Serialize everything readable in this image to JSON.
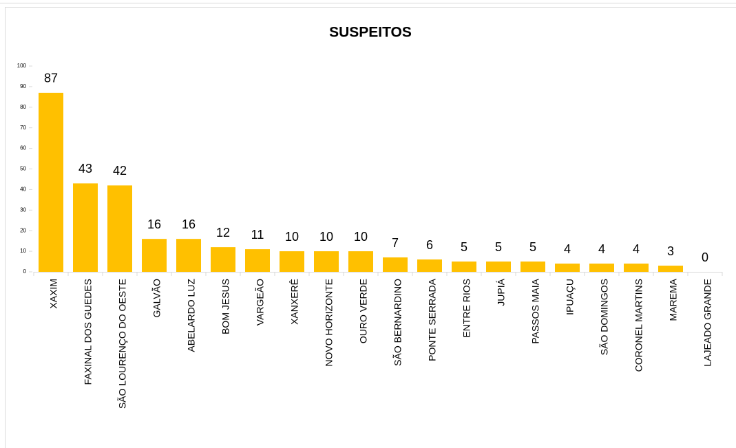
{
  "chart_data": {
    "type": "bar",
    "title": "SUSPEITOS",
    "categories": [
      "XAXIM",
      "FAXINAL DOS GUEDES",
      "SÃO LOURENÇO DO OESTE",
      "GALVÃO",
      "ABELARDO LUZ",
      "BOM JESUS",
      "VARGEÃO",
      "XANXERÊ",
      "NOVO HORIZONTE",
      "OURO VERDE",
      "SÃO BERNARDINO",
      "PONTE SERRADA",
      "ENTRE RIOS",
      "JUPIÁ",
      "PASSOS MAIA",
      "IPUAÇU",
      "SÃO DOMINGOS",
      "CORONEL MARTINS",
      "MAREMA",
      "LAJEADO GRANDE"
    ],
    "values": [
      87,
      43,
      42,
      16,
      16,
      12,
      11,
      10,
      10,
      10,
      7,
      6,
      5,
      5,
      5,
      4,
      4,
      4,
      3,
      0
    ],
    "color": "#ffc000",
    "ylim": [
      0,
      100
    ],
    "yticks": [
      0,
      10,
      20,
      30,
      40,
      50,
      60,
      70,
      80,
      90,
      100
    ],
    "grid": false
  }
}
